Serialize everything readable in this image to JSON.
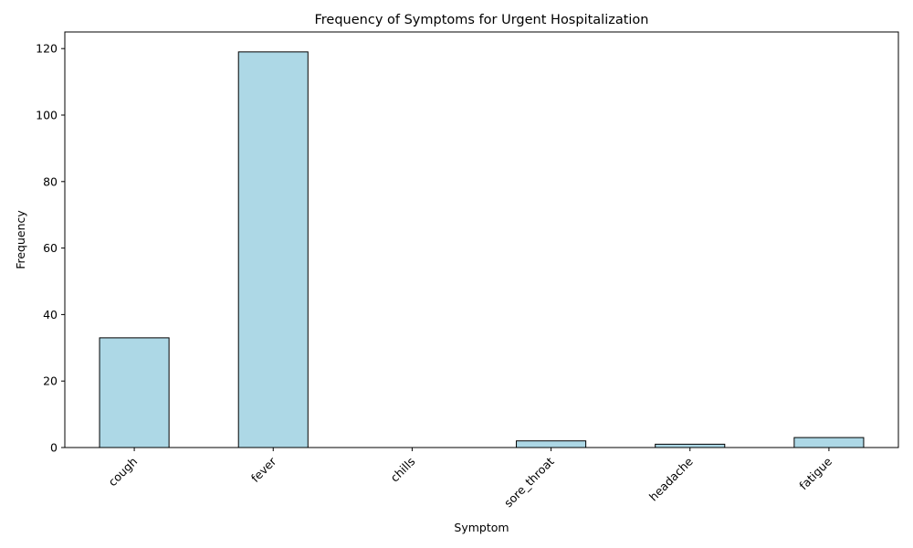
{
  "chart_data": {
    "type": "bar",
    "title": "Frequency of Symptoms for Urgent Hospitalization",
    "xlabel": "Symptom",
    "ylabel": "Frequency",
    "categories": [
      "cough",
      "fever",
      "chills",
      "sore_throat",
      "headache",
      "fatigue"
    ],
    "values": [
      33,
      119,
      0,
      2,
      1,
      3
    ],
    "ylim": [
      0,
      125
    ],
    "yticks": [
      0,
      20,
      40,
      60,
      80,
      100,
      120
    ],
    "ytick_labels": [
      "0",
      "20",
      "40",
      "60",
      "80",
      "100",
      "120"
    ],
    "bar_color": "#add8e6",
    "edge_color": "#000000",
    "grid": false,
    "legend": "none",
    "xtick_rotation": "45 degrees"
  }
}
